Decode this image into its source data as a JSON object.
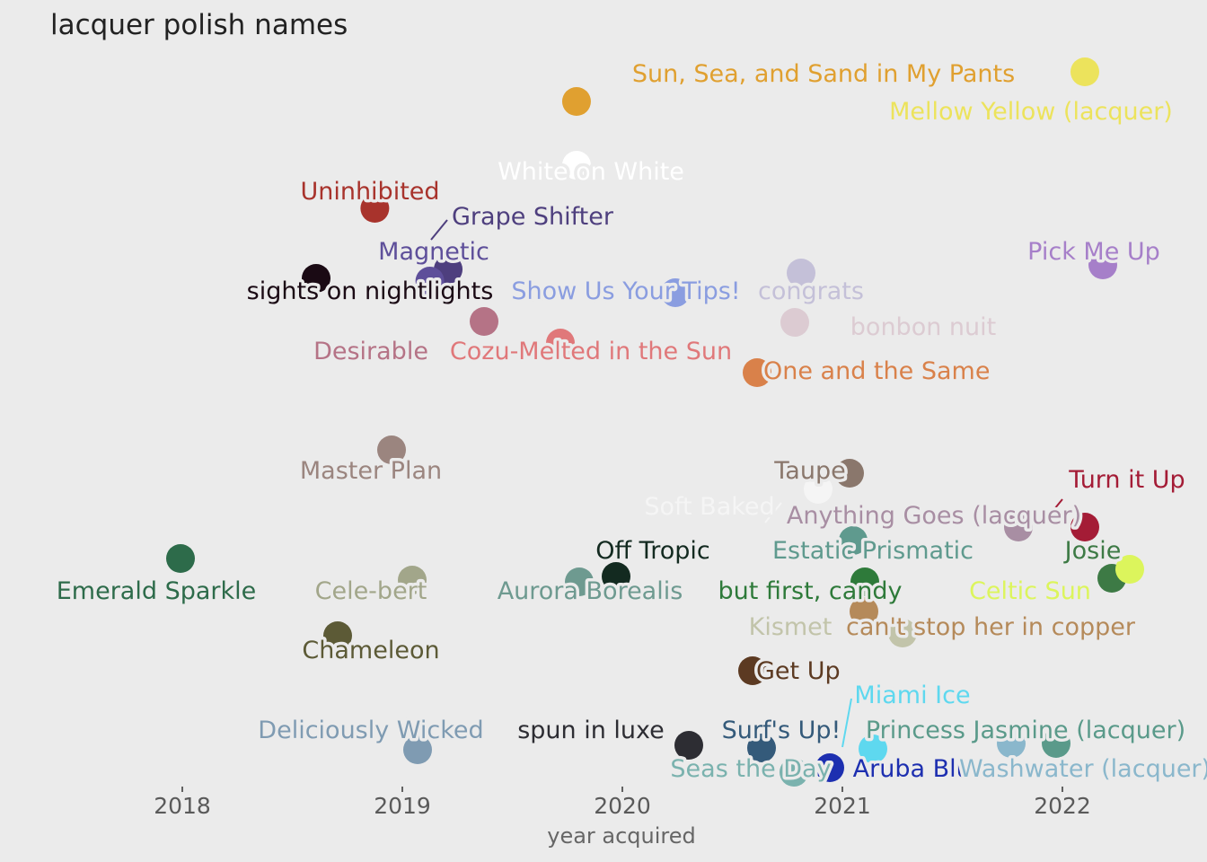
{
  "chart_data": {
    "type": "scatter",
    "title": "lacquer polish names",
    "xlabel": "year acquired",
    "ylabel": "",
    "x_ticks": [
      "2018",
      "2019",
      "2020",
      "2021",
      "2022"
    ],
    "xlim": [
      2017.3,
      2022.6
    ],
    "grid": false,
    "points": [
      {
        "name": "Sun, Sea, and Sand in My Pants",
        "x": "2019-10",
        "color": "#e0a030"
      },
      {
        "name": "Mellow Yellow (lacquer)",
        "x": "2022-03",
        "color": "#ece35c"
      },
      {
        "name": "White on White",
        "x": "2019-10",
        "color": "#ffffff"
      },
      {
        "name": "Uninhibited",
        "x": "2018-11",
        "color": "#a8332c"
      },
      {
        "name": "Grape Shifter",
        "x": "2019-03",
        "color": "#4e3f7e"
      },
      {
        "name": "Magnetic",
        "x": "2019-02",
        "color": "#5e4f9a"
      },
      {
        "name": "sights on nightlights",
        "x": "2018-08",
        "color": "#1a0a14"
      },
      {
        "name": "Show Us Your Tips!",
        "x": "2020-03",
        "color": "#8a9de0"
      },
      {
        "name": "congrats",
        "x": "2020-10",
        "color": "#c4c0d8"
      },
      {
        "name": "Pick Me Up",
        "x": "2022-03",
        "color": "#a67fc9"
      },
      {
        "name": "Desirable",
        "x": "2019-05",
        "color": "#b57386"
      },
      {
        "name": "Cozu-Melted in the Sun",
        "x": "2019-09",
        "color": "#e0787a"
      },
      {
        "name": "bonbon nuit",
        "x": "2020-10",
        "color": "#dccbd2"
      },
      {
        "name": "One and the Same",
        "x": "2020-08",
        "color": "#d9814a"
      },
      {
        "name": "Master Plan",
        "x": "2018-12",
        "color": "#9b857f"
      },
      {
        "name": "Taupe",
        "x": "2021-01",
        "color": "#8a776c"
      },
      {
        "name": "Soft Baked",
        "x": "2020-11",
        "color": "#f5f5f5"
      },
      {
        "name": "Turn it Up",
        "x": "2022-02",
        "color": "#a41c36"
      },
      {
        "name": "Anything Goes (lacquer)",
        "x": "2021-10",
        "color": "#a88ea3"
      },
      {
        "name": "Emerald Sparkle",
        "x": "2018-01",
        "color": "#2d6b4a"
      },
      {
        "name": "Off Tropic",
        "x": "2019-12",
        "color": "#132a20"
      },
      {
        "name": "Estatic Prismatic",
        "x": "2021-01",
        "color": "#5f9a8e"
      },
      {
        "name": "Josie",
        "x": "2022-03",
        "color": "#3d7a45"
      },
      {
        "name": "Cele-bert",
        "x": "2019-01",
        "color": "#a2a68a"
      },
      {
        "name": "Aurora Borealis",
        "x": "2019-10",
        "color": "#6e9a90"
      },
      {
        "name": "but first, candy",
        "x": "2021-02",
        "color": "#2e7a3a"
      },
      {
        "name": "Celtic Sun",
        "x": "2022-04",
        "color": "#dcf55c"
      },
      {
        "name": "Kismet",
        "x": "2021-03",
        "color": "#c2c4aa"
      },
      {
        "name": "can't stop her in copper",
        "x": "2021-02",
        "color": "#b58a5a"
      },
      {
        "name": "Chameleon",
        "x": "2018-09",
        "color": "#5c5a36"
      },
      {
        "name": "Get Up",
        "x": "2020-07",
        "color": "#5c3a22"
      },
      {
        "name": "Miami Ice",
        "x": "2021-02",
        "color": "#5ed8ef"
      },
      {
        "name": "Deliciously Wicked",
        "x": "2019-02",
        "color": "#7f9bb2"
      },
      {
        "name": "spun in luxe",
        "x": "2020-04",
        "color": "#2d2d33"
      },
      {
        "name": "Surf's Up!",
        "x": "2020-08",
        "color": "#345a7a"
      },
      {
        "name": "Princess Jasmine (lacquer)",
        "x": "2021-12",
        "color": "#5a9a8a"
      },
      {
        "name": "Seas the Day",
        "x": "2020-09",
        "color": "#7ab2ae"
      },
      {
        "name": "Aruba Blue",
        "x": "2020-12",
        "color": "#1d2fb0"
      },
      {
        "name": "Washwater (lacquer)",
        "x": "2021-11",
        "color": "#8ab7cc"
      }
    ]
  }
}
